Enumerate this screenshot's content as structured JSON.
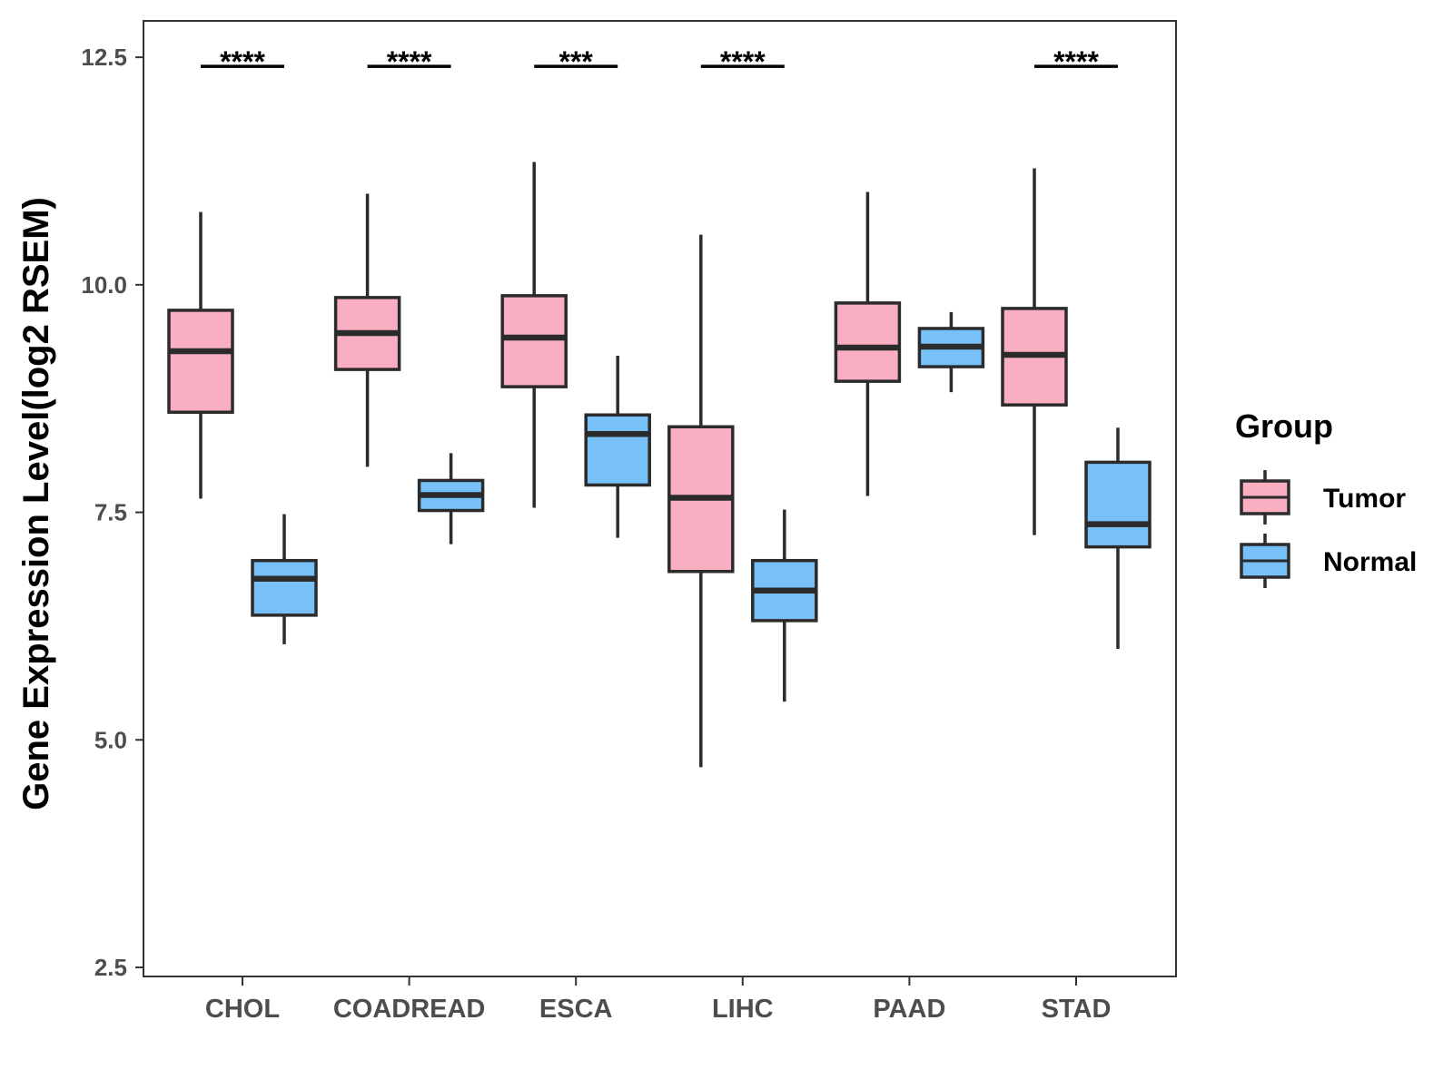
{
  "chart_data": {
    "type": "boxplot",
    "title": "",
    "xlabel": "",
    "ylabel": "Gene Expression Level(log2 RSEM)",
    "ylim": [
      2.4,
      12.9
    ],
    "yticks": [
      "2.5",
      "5.0",
      "7.5",
      "10.0",
      "12.5"
    ],
    "ytick_values": [
      2.5,
      5.0,
      7.5,
      10.0,
      12.5
    ],
    "grid": false,
    "legend": {
      "title": "Group",
      "position": "right",
      "entries": [
        {
          "label": "Tumor",
          "color": "#F9AFC1"
        },
        {
          "label": "Normal",
          "color": "#77C0F8"
        }
      ]
    },
    "categories": [
      "CHOL",
      "COADREAD",
      "ESCA",
      "LIHC",
      "PAAD",
      "STAD"
    ],
    "series": [
      {
        "name": "Tumor",
        "color": "#F9AFC1",
        "boxes": [
          {
            "min": 7.65,
            "q1": 8.6,
            "median": 9.27,
            "q3": 9.72,
            "max": 10.8
          },
          {
            "min": 8.0,
            "q1": 9.07,
            "median": 9.47,
            "q3": 9.86,
            "max": 11.0
          },
          {
            "min": 7.55,
            "q1": 8.88,
            "median": 9.42,
            "q3": 9.88,
            "max": 11.35
          },
          {
            "min": 4.7,
            "q1": 6.85,
            "median": 7.66,
            "q3": 8.44,
            "max": 10.55
          },
          {
            "min": 7.68,
            "q1": 8.94,
            "median": 9.31,
            "q3": 9.8,
            "max": 11.02
          },
          {
            "min": 7.25,
            "q1": 8.68,
            "median": 9.23,
            "q3": 9.74,
            "max": 11.28
          }
        ]
      },
      {
        "name": "Normal",
        "color": "#77C0F8",
        "boxes": [
          {
            "min": 6.05,
            "q1": 6.37,
            "median": 6.77,
            "q3": 6.97,
            "max": 7.48
          },
          {
            "min": 7.15,
            "q1": 7.52,
            "median": 7.69,
            "q3": 7.85,
            "max": 8.15
          },
          {
            "min": 7.22,
            "q1": 7.8,
            "median": 8.36,
            "q3": 8.57,
            "max": 9.22
          },
          {
            "min": 5.42,
            "q1": 6.31,
            "median": 6.64,
            "q3": 6.97,
            "max": 7.53
          },
          {
            "min": 8.82,
            "q1": 9.1,
            "median": 9.32,
            "q3": 9.52,
            "max": 9.7
          },
          {
            "min": 6.0,
            "q1": 7.12,
            "median": 7.37,
            "q3": 8.05,
            "max": 8.43
          }
        ]
      }
    ],
    "significance": [
      {
        "category": "CHOL",
        "label": "****",
        "y": 12.4
      },
      {
        "category": "COADREAD",
        "label": "****",
        "y": 12.4
      },
      {
        "category": "ESCA",
        "label": "***",
        "y": 12.4
      },
      {
        "category": "LIHC",
        "label": "****",
        "y": 12.4
      },
      {
        "category": "STAD",
        "label": "****",
        "y": 12.4
      }
    ]
  }
}
